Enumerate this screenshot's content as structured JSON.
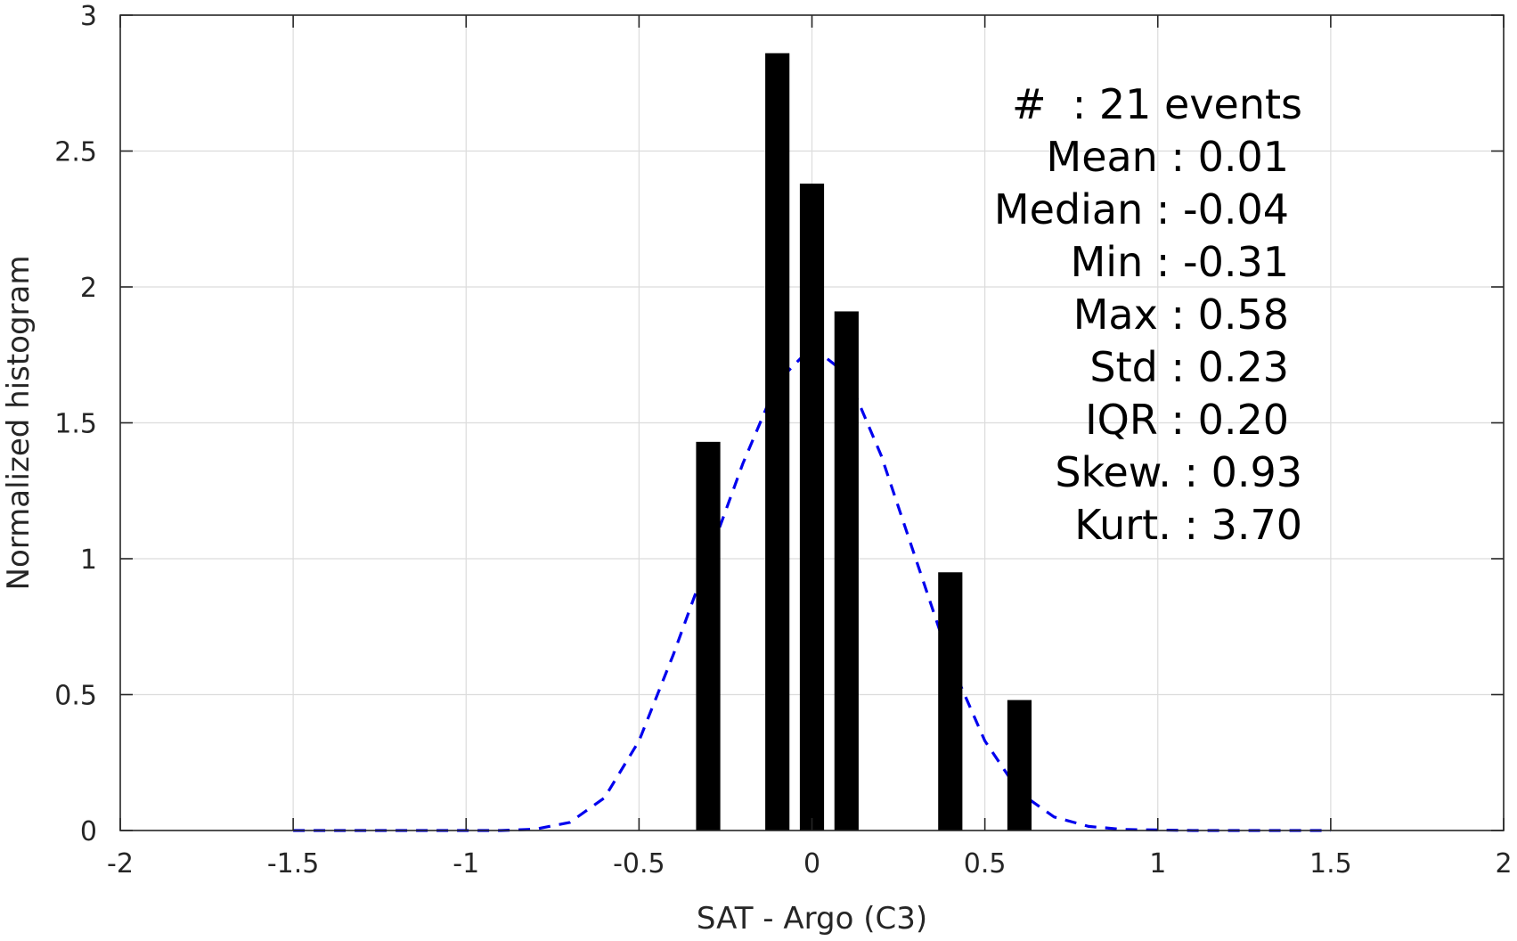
{
  "chart_data": {
    "type": "bar",
    "title": "",
    "xlabel": "SAT - Argo (C3)",
    "ylabel": "Normalized histogram",
    "xlim": [
      -2,
      2
    ],
    "ylim": [
      0,
      3
    ],
    "xticks": [
      -2,
      -1.5,
      -1,
      -0.5,
      0,
      0.5,
      1,
      1.5,
      2
    ],
    "xtick_labels": [
      "-2",
      "-1.5",
      "-1",
      "-0.5",
      "0",
      "0.5",
      "1",
      "1.5",
      "2"
    ],
    "yticks": [
      0,
      0.5,
      1,
      1.5,
      2,
      2.5,
      3
    ],
    "ytick_labels": [
      "0",
      "0.5",
      "1",
      "1.5",
      "2",
      "2.5",
      "3"
    ],
    "grid": true,
    "bar_width": 0.07,
    "bars": [
      {
        "x": -0.3,
        "value": 1.43
      },
      {
        "x": -0.1,
        "value": 2.86
      },
      {
        "x": 0.0,
        "value": 2.38
      },
      {
        "x": 0.1,
        "value": 1.91
      },
      {
        "x": 0.4,
        "value": 0.95
      },
      {
        "x": 0.6,
        "value": 0.48
      }
    ],
    "fit_curve": {
      "style": "dashed",
      "color": "#0000ee",
      "mean": 0.01,
      "std": 0.23,
      "x_range": [
        -1.5,
        1.5
      ],
      "points": [
        [
          -1.5,
          0.0
        ],
        [
          -1.3,
          0.0
        ],
        [
          -1.1,
          0.0
        ],
        [
          -0.9,
          0.0
        ],
        [
          -0.8,
          0.005
        ],
        [
          -0.7,
          0.03
        ],
        [
          -0.6,
          0.12
        ],
        [
          -0.5,
          0.33
        ],
        [
          -0.4,
          0.65
        ],
        [
          -0.3,
          1.0
        ],
        [
          -0.2,
          1.35
        ],
        [
          -0.1,
          1.65
        ],
        [
          0.0,
          1.78
        ],
        [
          0.1,
          1.68
        ],
        [
          0.2,
          1.38
        ],
        [
          0.3,
          1.0
        ],
        [
          0.4,
          0.62
        ],
        [
          0.5,
          0.33
        ],
        [
          0.6,
          0.14
        ],
        [
          0.7,
          0.05
        ],
        [
          0.8,
          0.015
        ],
        [
          0.9,
          0.004
        ],
        [
          1.1,
          0.0
        ],
        [
          1.3,
          0.0
        ],
        [
          1.5,
          0.0
        ]
      ]
    },
    "colors": {
      "bar": "#000000",
      "grid": "#dcdcdc",
      "axis": "#262626",
      "curve": "#0000ee"
    },
    "annotation_lines": [
      "#  : 21 events",
      "Mean : 0.01",
      "Median : -0.04",
      "Min : -0.31",
      "Max : 0.58",
      "Std : 0.23",
      "IQR : 0.20",
      "Skew. : 0.93",
      "Kurt. : 3.70"
    ]
  }
}
